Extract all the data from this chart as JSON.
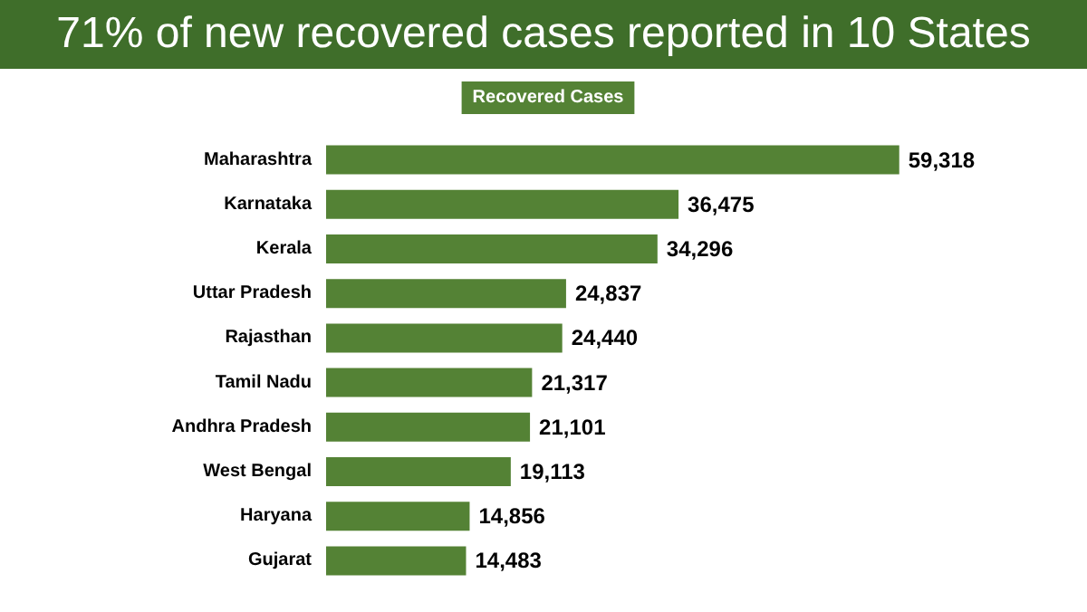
{
  "chart_data": {
    "type": "bar",
    "orientation": "horizontal",
    "title": "71% of new recovered cases reported in 10 States",
    "categories": [
      "Maharashtra",
      "Karnataka",
      "Kerala",
      "Uttar Pradesh",
      "Rajasthan",
      "Tamil Nadu",
      "Andhra Pradesh",
      "West Bengal",
      "Haryana",
      "Gujarat"
    ],
    "series": [
      {
        "name": "Recovered Cases",
        "color": "#548235",
        "values": [
          59318,
          36475,
          34296,
          24837,
          24440,
          21317,
          21101,
          19113,
          14856,
          14483
        ],
        "value_labels": [
          "59,318",
          "36,475",
          "34,296",
          "24,837",
          "24,440",
          "21,317",
          "21,101",
          "19,113",
          "14,856",
          "14,483"
        ]
      }
    ],
    "legend": "top"
  }
}
